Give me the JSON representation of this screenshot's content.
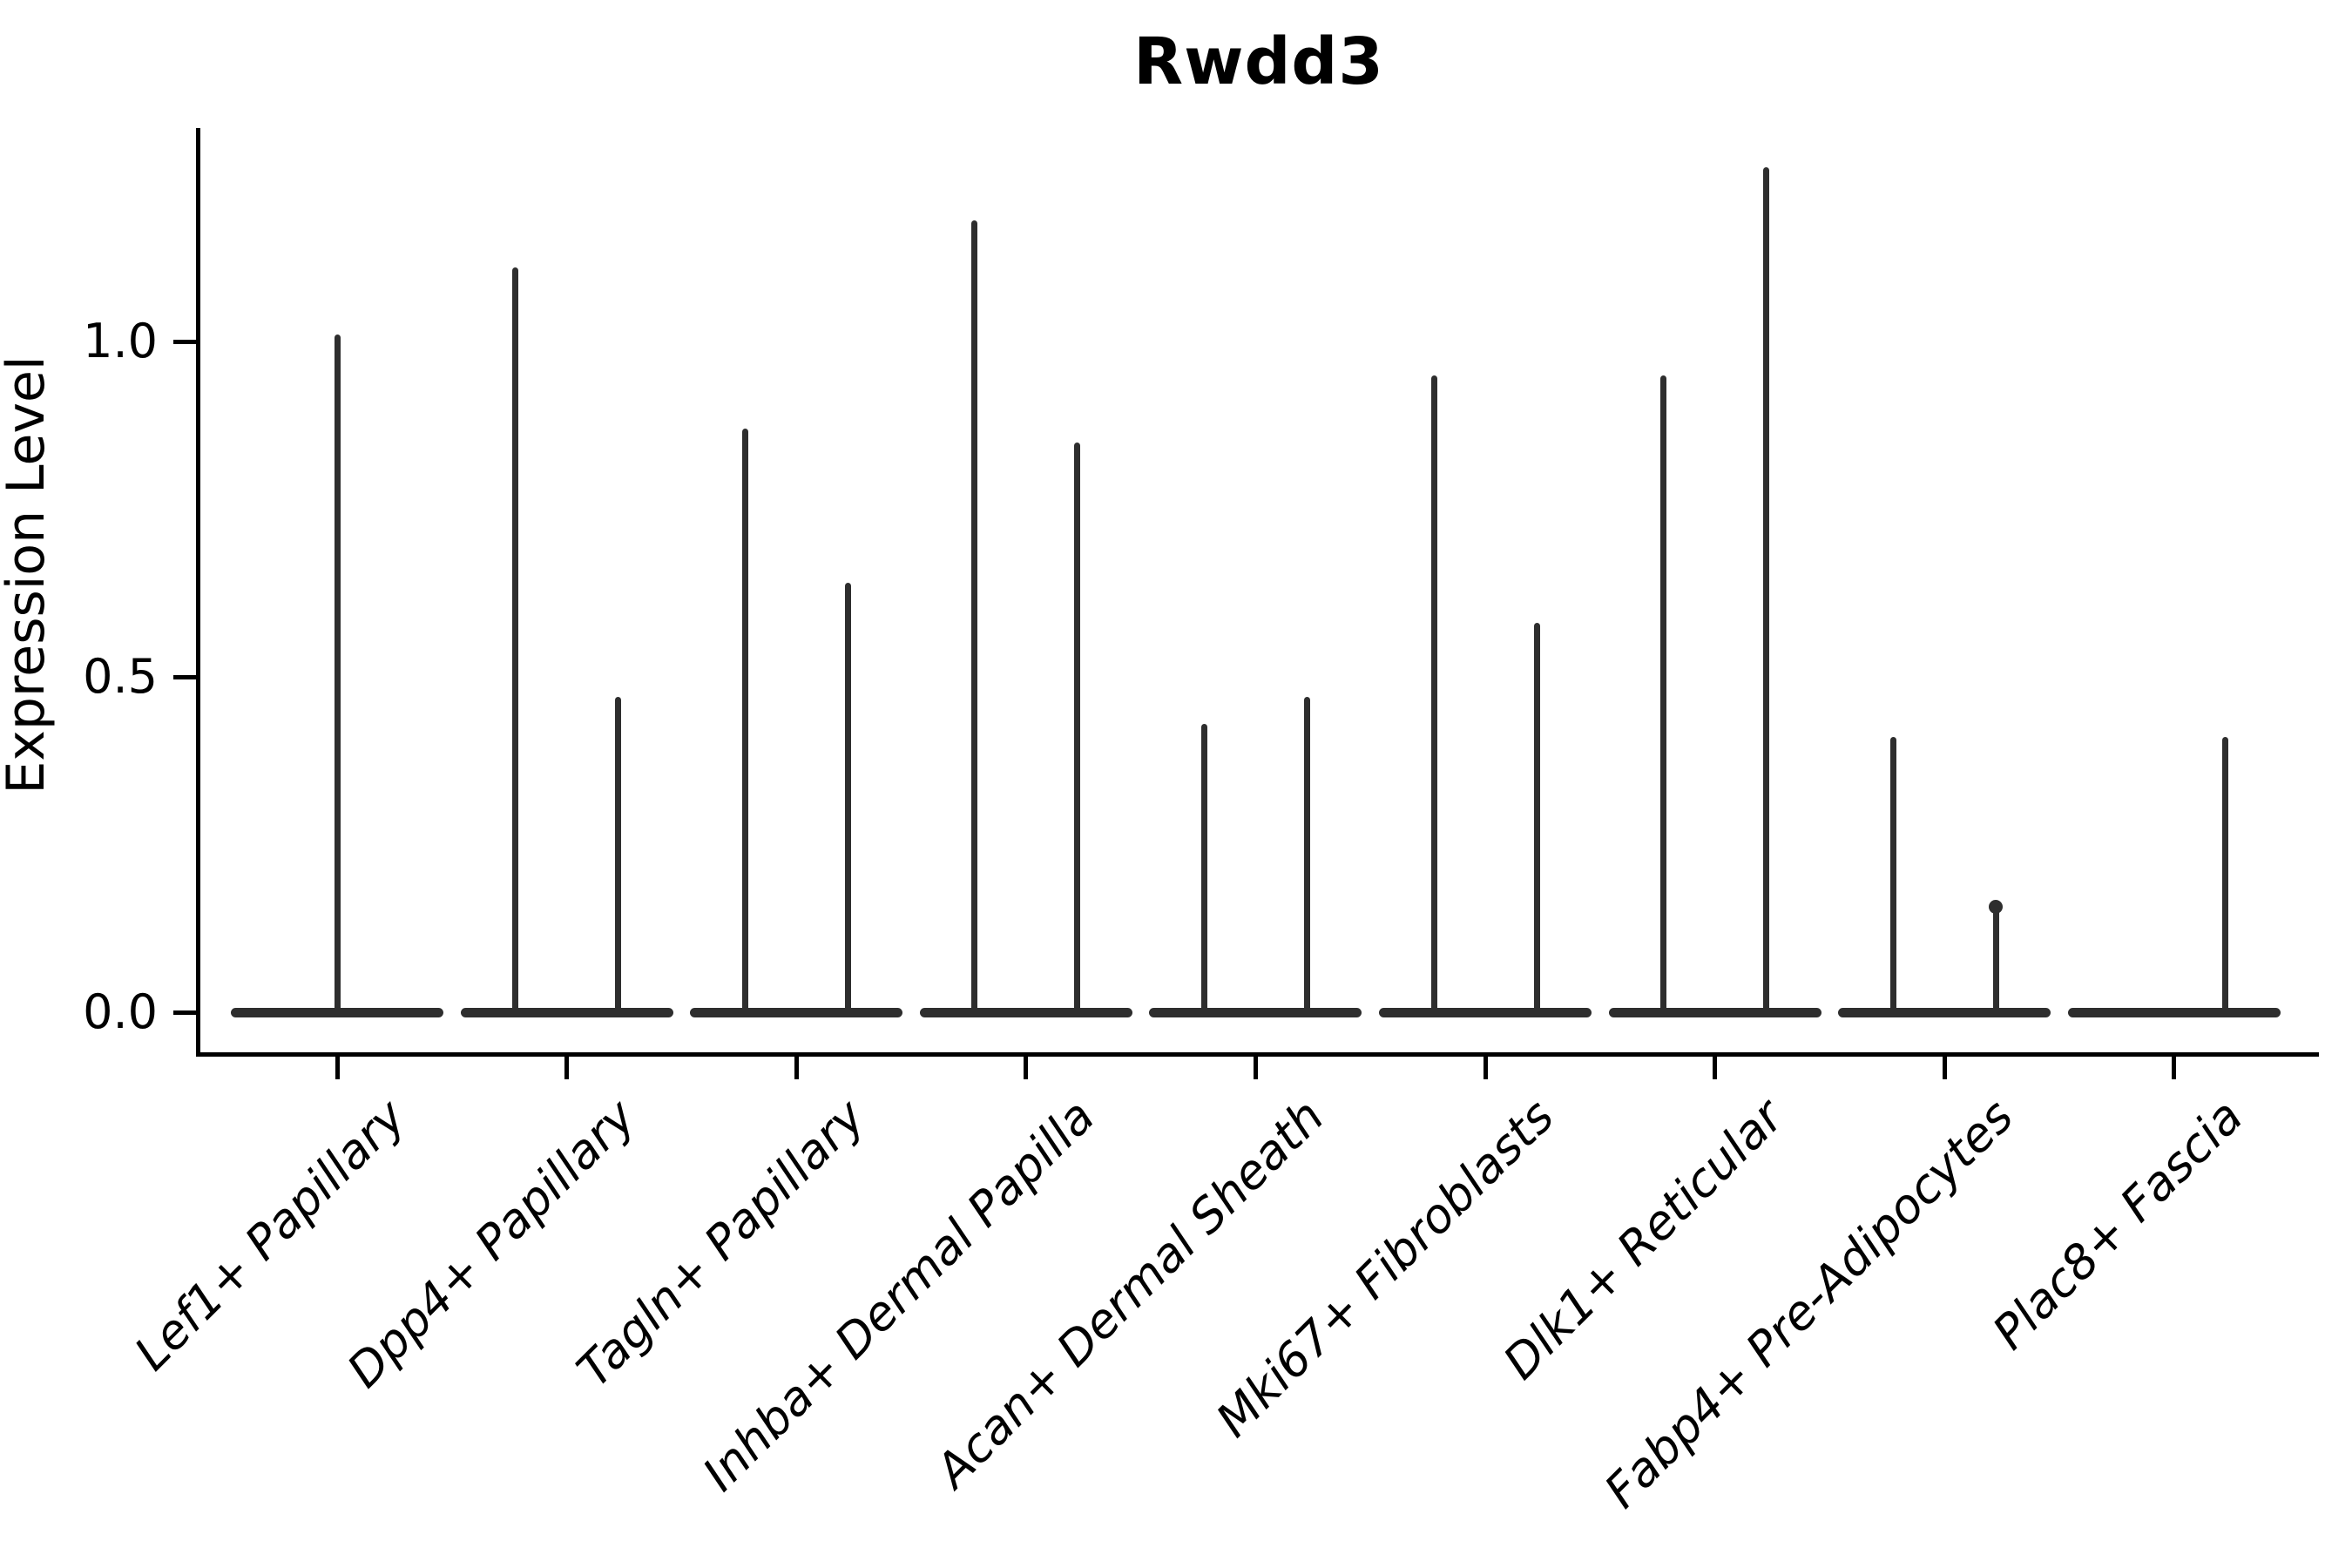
{
  "chart_data": {
    "type": "violin",
    "title": "Rwdd3",
    "ylabel": "Expression Level",
    "xlabel": "",
    "y_ticks": [
      "0.0",
      "0.5",
      "1.0"
    ],
    "y_tick_values": [
      0.0,
      0.5,
      1.0
    ],
    "ylim": [
      -0.06,
      1.32
    ],
    "grid": false,
    "legend": "none",
    "style": "thin black spike violins with flat zero-density baseline, white background",
    "categories": [
      "Lef1+ Papillary",
      "Dpp4+ Papillary",
      "Tagln+ Papillary",
      "Inhba+ Dermal Papilla",
      "Acan+ Dermal Sheath",
      "Mki67+ Fibroblasts",
      "Dlk1+ Reticular",
      "Fabp4+ Pre-Adipocytes",
      "Plac8+ Fascia"
    ],
    "violins": [
      {
        "category": "Lef1+ Papillary",
        "spikes": [
          {
            "position": "center",
            "value": 1.01
          }
        ]
      },
      {
        "category": "Dpp4+ Papillary",
        "spikes": [
          {
            "position": "left",
            "value": 1.11
          },
          {
            "position": "right",
            "value": 0.47
          }
        ]
      },
      {
        "category": "Tagln+ Papillary",
        "spikes": [
          {
            "position": "left",
            "value": 0.87
          },
          {
            "position": "right",
            "value": 0.64
          }
        ]
      },
      {
        "category": "Inhba+ Dermal Papilla",
        "spikes": [
          {
            "position": "left",
            "value": 1.18
          },
          {
            "position": "right",
            "value": 0.85
          }
        ]
      },
      {
        "category": "Acan+ Dermal Sheath",
        "spikes": [
          {
            "position": "left",
            "value": 0.43
          },
          {
            "position": "right",
            "value": 0.47
          }
        ]
      },
      {
        "category": "Mki67+ Fibroblasts",
        "spikes": [
          {
            "position": "left",
            "value": 0.95
          },
          {
            "position": "right",
            "value": 0.58
          }
        ]
      },
      {
        "category": "Dlk1+ Reticular",
        "spikes": [
          {
            "position": "left",
            "value": 0.95
          },
          {
            "position": "right",
            "value": 1.26
          }
        ]
      },
      {
        "category": "Fabp4+ Pre-Adipocytes",
        "spikes": [
          {
            "position": "left",
            "value": 0.41
          },
          {
            "position": "right",
            "value": 0.16,
            "knob": true
          }
        ]
      },
      {
        "category": "Plac8+ Fascia",
        "spikes": [
          {
            "position": "right",
            "value": 0.41
          }
        ]
      }
    ],
    "colors": {
      "ink": "#000000",
      "violin": "#2e2e2e",
      "background": "#ffffff"
    }
  }
}
